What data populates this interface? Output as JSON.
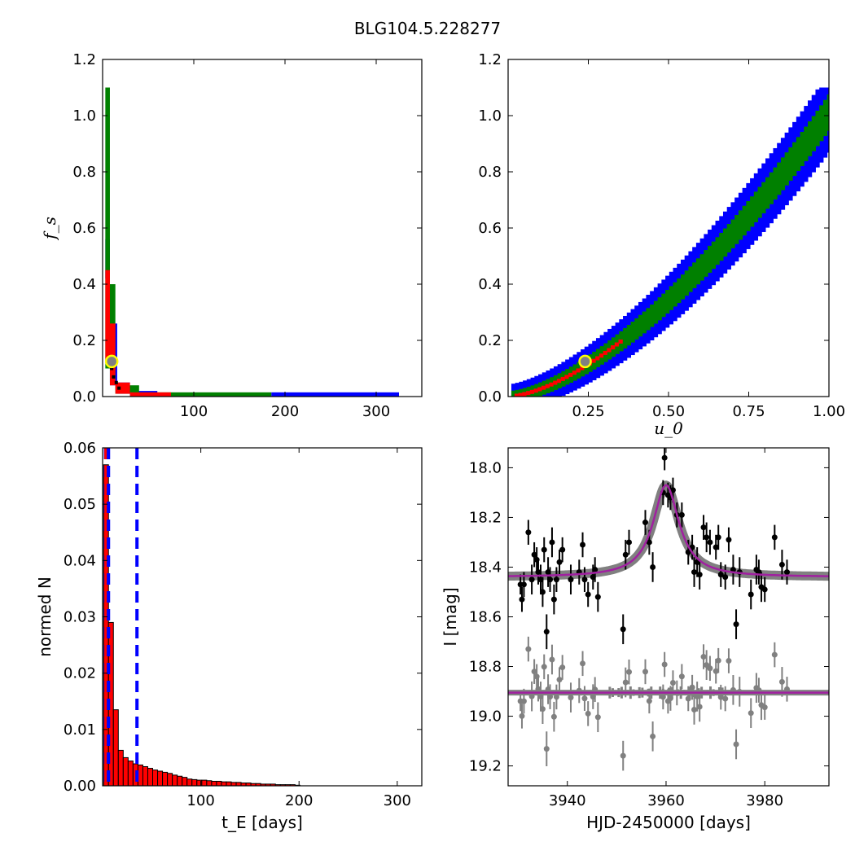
{
  "title": "BLG104.5.228277",
  "colors": {
    "blue": "#0000ff",
    "green": "#008000",
    "red": "#ff0000",
    "black": "#000000",
    "gray": "#808080",
    "model": "#a020a0",
    "marker_face": "#808080",
    "marker_edge": "#ffff00"
  },
  "chart_data": [
    {
      "id": "tE_fs",
      "type": "heatmap",
      "xlabel": "",
      "ylabel": "f_s",
      "xlim": [
        0,
        350
      ],
      "ylim": [
        0,
        1.2
      ],
      "xticks": [
        100,
        200,
        300
      ],
      "xtick_labels": [
        "100",
        "200",
        "300"
      ],
      "yticks": [
        0.0,
        0.2,
        0.4,
        0.6,
        0.8,
        1.0,
        1.2
      ],
      "ytick_labels": [
        "0.0",
        "0.2",
        "0.4",
        "0.6",
        "0.8",
        "1.0",
        "1.2"
      ],
      "regions": [
        {
          "level": "3sigma",
          "color": "blue",
          "cells": [
            [
              3,
              8,
              0.42,
              0.56
            ],
            [
              8,
              16,
              0.04,
              0.26
            ],
            [
              16,
              30,
              0.01,
              0.05
            ],
            [
              30,
              60,
              0.0,
              0.02
            ],
            [
              185,
              325,
              0.0,
              0.015
            ]
          ]
        },
        {
          "level": "2sigma",
          "color": "green",
          "cells": [
            [
              3,
              8,
              0.1,
              1.1
            ],
            [
              8,
              14,
              0.05,
              0.4
            ],
            [
              14,
              40,
              0.01,
              0.04
            ],
            [
              40,
              75,
              0.0,
              0.015
            ],
            [
              75,
              185,
              0.0,
              0.015
            ]
          ]
        },
        {
          "level": "1sigma",
          "color": "red",
          "cells": [
            [
              3,
              8,
              0.12,
              0.45
            ],
            [
              8,
              14,
              0.04,
              0.26
            ],
            [
              14,
              30,
              0.01,
              0.05
            ],
            [
              30,
              75,
              0.0,
              0.015
            ]
          ]
        }
      ],
      "best_fit": {
        "x": 10,
        "y": 0.125
      }
    },
    {
      "id": "u0_fs",
      "type": "heatmap",
      "xlabel": "u_0",
      "ylabel": "",
      "xlim": [
        0.0,
        1.0
      ],
      "ylim": [
        0,
        1.2
      ],
      "xticks": [
        0.25,
        0.5,
        0.75,
        1.0
      ],
      "xtick_labels": [
        "0.25",
        "0.50",
        "0.75",
        "1.00"
      ],
      "yticks": [
        0.0,
        0.2,
        0.4,
        0.6,
        0.8,
        1.0,
        1.2
      ],
      "ytick_labels": [
        "0.0",
        "0.2",
        "0.4",
        "0.6",
        "0.8",
        "1.0",
        "1.2"
      ],
      "band": {
        "model": "fs = a*u0^1.6",
        "blue_halfwidth": 0.11,
        "green_halfwidth": 0.05,
        "red_range": [
          0.02,
          0.35
        ]
      },
      "best_fit": {
        "x": 0.24,
        "y": 0.125
      }
    },
    {
      "id": "tE_hist",
      "type": "bar",
      "xlabel": "t_E [days]",
      "ylabel": "normed N",
      "xlim": [
        0,
        325
      ],
      "ylim": [
        0,
        0.06
      ],
      "xticks": [
        100,
        200,
        300
      ],
      "xtick_labels": [
        "100",
        "200",
        "300"
      ],
      "yticks": [
        0.0,
        0.01,
        0.02,
        0.03,
        0.04,
        0.05,
        0.06
      ],
      "ytick_labels": [
        "0.00",
        "0.01",
        "0.02",
        "0.03",
        "0.04",
        "0.05",
        "0.06"
      ],
      "bin_width": 5,
      "bin_start": 1,
      "values": [
        0.057,
        0.029,
        0.0135,
        0.0063,
        0.005,
        0.0044,
        0.0039,
        0.0037,
        0.0034,
        0.0031,
        0.0028,
        0.0026,
        0.0024,
        0.0022,
        0.0019,
        0.0017,
        0.0015,
        0.0012,
        0.0011,
        0.001,
        0.001,
        0.0009,
        0.0008,
        0.0008,
        0.0007,
        0.0007,
        0.0006,
        0.0006,
        0.0005,
        0.0005,
        0.0004,
        0.0004,
        0.0003,
        0.0003,
        0.0003,
        0.0002,
        0.0002,
        0.0002,
        0.0002,
        0.0001
      ],
      "vlines_blue": [
        3,
        6,
        35
      ],
      "vline_red": 3
    },
    {
      "id": "lightcurve",
      "type": "scatter",
      "xlabel": "HJD-2450000 [days]",
      "ylabel": "I [mag]",
      "xlim": [
        3928,
        3993
      ],
      "ylim": [
        19.28,
        17.92
      ],
      "xticks": [
        3940,
        3960,
        3980
      ],
      "xtick_labels": [
        "3940",
        "3960",
        "3980"
      ],
      "yticks": [
        18.0,
        18.2,
        18.4,
        18.6,
        18.8,
        19.0,
        19.2
      ],
      "ytick_labels": [
        "18.0",
        "18.2",
        "18.4",
        "18.6",
        "18.8",
        "19.0",
        "19.2"
      ],
      "model": {
        "t0": 3960,
        "baseline": 18.44,
        "peak": 18.07,
        "tE": 3.2
      },
      "residual_baseline": 18.905,
      "points": [
        [
          3930.5,
          18.47,
          0.04
        ],
        [
          3930.8,
          18.53,
          0.05
        ],
        [
          3931.2,
          18.47,
          0.05
        ],
        [
          3932.1,
          18.26,
          0.05
        ],
        [
          3932.8,
          18.45,
          0.06
        ],
        [
          3933.3,
          18.35,
          0.05
        ],
        [
          3933.8,
          18.37,
          0.05
        ],
        [
          3934.1,
          18.42,
          0.05
        ],
        [
          3934.6,
          18.45,
          0.06
        ],
        [
          3935.0,
          18.5,
          0.06
        ],
        [
          3935.3,
          18.33,
          0.05
        ],
        [
          3935.8,
          18.66,
          0.07
        ],
        [
          3936.1,
          18.42,
          0.06
        ],
        [
          3936.5,
          18.45,
          0.05
        ],
        [
          3936.9,
          18.3,
          0.06
        ],
        [
          3937.3,
          18.53,
          0.06
        ],
        [
          3937.8,
          18.45,
          0.05
        ],
        [
          3938.4,
          18.38,
          0.05
        ],
        [
          3939.0,
          18.33,
          0.05
        ],
        [
          3940.7,
          18.45,
          0.06
        ],
        [
          3942.4,
          18.42,
          0.05
        ],
        [
          3943.1,
          18.31,
          0.05
        ],
        [
          3943.5,
          18.45,
          0.05
        ],
        [
          3944.2,
          18.51,
          0.05
        ],
        [
          3945.2,
          18.44,
          0.05
        ],
        [
          3945.6,
          18.41,
          0.05
        ],
        [
          3946.2,
          18.52,
          0.06
        ],
        [
          3951.3,
          18.65,
          0.06
        ],
        [
          3951.8,
          18.35,
          0.06
        ],
        [
          3952.5,
          18.3,
          0.05
        ],
        [
          3955.8,
          18.22,
          0.05
        ],
        [
          3956.6,
          18.3,
          0.05
        ],
        [
          3957.3,
          18.4,
          0.06
        ],
        [
          3959.4,
          18.1,
          0.05
        ],
        [
          3959.7,
          17.96,
          0.05
        ],
        [
          3960.4,
          18.11,
          0.05
        ],
        [
          3960.9,
          18.12,
          0.05
        ],
        [
          3961.4,
          18.09,
          0.05
        ],
        [
          3962.2,
          18.19,
          0.05
        ],
        [
          3963.2,
          18.19,
          0.05
        ],
        [
          3964.5,
          18.34,
          0.05
        ],
        [
          3965.3,
          18.32,
          0.05
        ],
        [
          3965.7,
          18.42,
          0.06
        ],
        [
          3966.3,
          18.38,
          0.06
        ],
        [
          3966.8,
          18.43,
          0.06
        ],
        [
          3967.6,
          18.24,
          0.05
        ],
        [
          3968.2,
          18.28,
          0.06
        ],
        [
          3968.9,
          18.3,
          0.05
        ],
        [
          3970.1,
          18.32,
          0.05
        ],
        [
          3970.6,
          18.28,
          0.05
        ],
        [
          3971.1,
          18.43,
          0.05
        ],
        [
          3972.0,
          18.44,
          0.05
        ],
        [
          3972.7,
          18.29,
          0.05
        ],
        [
          3973.6,
          18.41,
          0.06
        ],
        [
          3974.2,
          18.63,
          0.06
        ],
        [
          3974.9,
          18.42,
          0.06
        ],
        [
          3977.2,
          18.51,
          0.06
        ],
        [
          3978.3,
          18.41,
          0.06
        ],
        [
          3978.8,
          18.42,
          0.05
        ],
        [
          3979.3,
          18.48,
          0.06
        ],
        [
          3980.0,
          18.49,
          0.05
        ],
        [
          3982.0,
          18.28,
          0.05
        ],
        [
          3983.5,
          18.39,
          0.06
        ],
        [
          3984.5,
          18.42,
          0.05
        ]
      ]
    }
  ]
}
